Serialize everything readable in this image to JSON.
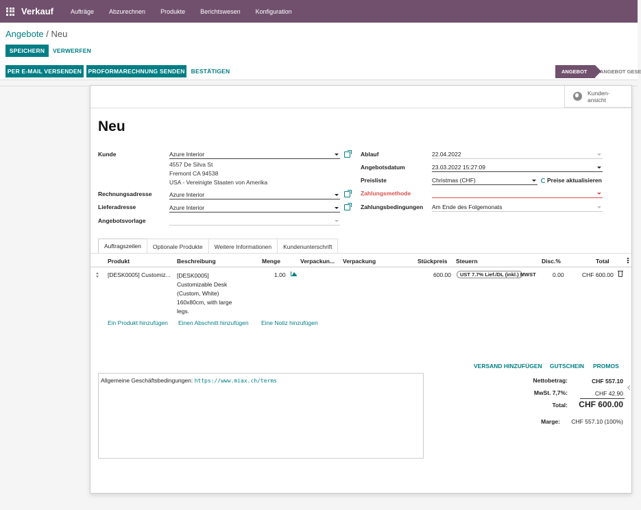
{
  "topbar": {
    "brand": "Verkauf",
    "menu": [
      "Aufträge",
      "Abzurechnen",
      "Produkte",
      "Berichtswesen",
      "Konfiguration"
    ]
  },
  "breadcrumb": {
    "parent": "Angebote",
    "separator": " / ",
    "current": "Neu"
  },
  "buttons": {
    "save": "SPEICHERN",
    "discard": "VERWERFEN",
    "email": "PER E-MAIL VERSENDEN",
    "proforma": "PROFORMARECHNUNG SENDEN",
    "confirm": "BESTÄTIGEN"
  },
  "status": {
    "active": "ANGEBOT",
    "next": "ANGEBOT GESE"
  },
  "smart_button": {
    "line1": "Kunden-",
    "line2": "ansicht"
  },
  "form": {
    "title": "Neu",
    "customer_label": "Kunde",
    "customer": "Azure Interior",
    "address": [
      "4557 De Silva St",
      "Fremont CA 94538",
      "USA - Vereinigte Staaten von Amerika"
    ],
    "invoice_label": "Rechnungsadresse",
    "invoice": "Azure Interior",
    "delivery_label": "Lieferadresse",
    "delivery": "Azure Interior",
    "template_label": "Angebotsvorlage",
    "template": "",
    "expiry_label": "Ablauf",
    "expiry": "22.04.2022",
    "date_label": "Angebotsdatum",
    "date": "23.03.2022 15:27:09",
    "pricelist_label": "Preisliste",
    "pricelist": "Christmas (CHF)",
    "update_prices": "Preise aktualisieren",
    "payment_method_label": "Zahlungsmethode",
    "payment_method": "",
    "payment_terms_label": "Zahlungsbedingungen",
    "payment_terms": "Am Ende des Folgemonats"
  },
  "tabs": [
    "Auftragszeilen",
    "Optionale Produkte",
    "Weitere Informationen",
    "Kundenunterschrift"
  ],
  "columns": [
    "Produkt",
    "Beschreibung",
    "Menge",
    "Verpackun...",
    "Verpackung",
    "Stückpreis",
    "Steuern",
    "Disc.%",
    "Total"
  ],
  "line": {
    "product": "[DESK0005] Customiz...",
    "description": [
      "[DESK0005]",
      "Customizable Desk",
      "(Custom, White)",
      "160x80cm, with large",
      "legs."
    ],
    "qty": "1.00",
    "price": "600.00",
    "tax": "UST 7.7% Lief./DL (inkl.) MWST",
    "discount": "0.00",
    "total": "CHF 600.00"
  },
  "add_links": [
    "Ein Produkt hinzufügen",
    "Einen Abschnitt hinzufügen",
    "Eine Notiz hinzufügen"
  ],
  "actions": [
    "VERSAND HINZUFÜGEN",
    "GUTSCHEIN",
    "PROMOS"
  ],
  "notes": {
    "prefix": "Allgemeine Geschäftsbedingungen: ",
    "url": "https://www.miax.ch/terms"
  },
  "totals": {
    "net_label": "Nettobetrag:",
    "net": "CHF 557.10",
    "vat_label": "MwSt. 7,7%:",
    "vat": "CHF 42.90",
    "total_label": "Total:",
    "total": "CHF 600.00",
    "margin_label": "Marge:",
    "margin": "CHF 557.10 (100%)"
  },
  "colors": {
    "brand": "#71506e",
    "accent": "#017e84",
    "required": "#d9534f"
  }
}
